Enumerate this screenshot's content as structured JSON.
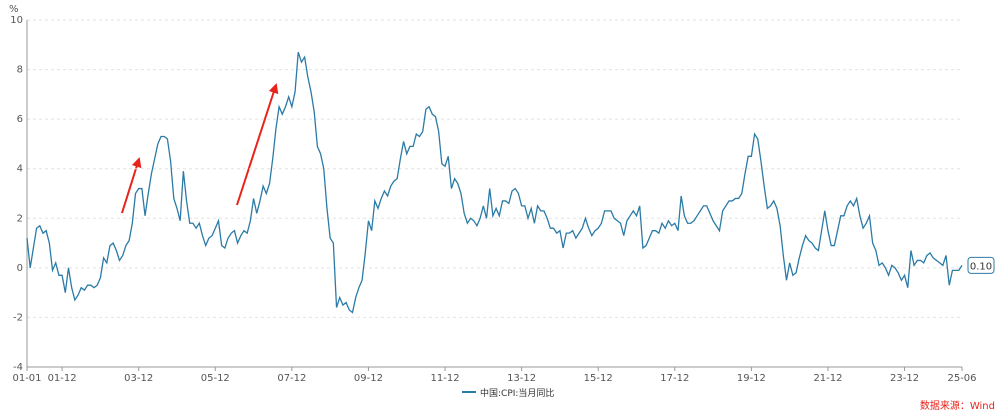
{
  "chart_data": {
    "type": "line",
    "y_unit": "%",
    "ylim": [
      -4,
      10
    ],
    "yticks": [
      -4,
      -2,
      0,
      2,
      4,
      6,
      8,
      10
    ],
    "grid": true,
    "legend": "bottom",
    "source": "数据来源：Wind",
    "end_label": "0.10",
    "categories": [
      "01-01",
      null,
      null,
      null,
      null,
      null,
      null,
      null,
      null,
      null,
      null,
      "01-12",
      null,
      null,
      null,
      null,
      null,
      null,
      null,
      null,
      null,
      null,
      null,
      null,
      null,
      null,
      null,
      null,
      null,
      null,
      null,
      null,
      null,
      null,
      null,
      "03-12",
      null,
      null,
      null,
      null,
      null,
      null,
      null,
      null,
      null,
      null,
      null,
      null,
      null,
      null,
      null,
      null,
      null,
      null,
      null,
      null,
      null,
      null,
      null,
      "05-12",
      null,
      null,
      null,
      null,
      null,
      null,
      null,
      null,
      null,
      null,
      null,
      null,
      null,
      null,
      null,
      null,
      null,
      null,
      null,
      null,
      null,
      null,
      null,
      "07-12",
      null,
      null,
      null,
      null,
      null,
      null,
      null,
      null,
      null,
      null,
      null,
      null,
      null,
      null,
      null,
      null,
      null,
      null,
      null,
      null,
      null,
      null,
      null,
      "09-12",
      null,
      null,
      null,
      null,
      null,
      null,
      null,
      null,
      null,
      null,
      null,
      null,
      null,
      null,
      null,
      null,
      null,
      null,
      null,
      null,
      null,
      null,
      null,
      "11-12",
      null,
      null,
      null,
      null,
      null,
      null,
      null,
      null,
      null,
      null,
      null,
      null,
      null,
      null,
      null,
      null,
      null,
      null,
      null,
      null,
      null,
      null,
      null,
      "13-12",
      null,
      null,
      null,
      null,
      null,
      null,
      null,
      null,
      null,
      null,
      null,
      null,
      null,
      null,
      null,
      null,
      null,
      null,
      null,
      null,
      null,
      null,
      null,
      "15-12",
      null,
      null,
      null,
      null,
      null,
      null,
      null,
      null,
      null,
      null,
      null,
      null,
      null,
      null,
      null,
      null,
      null,
      null,
      null,
      null,
      null,
      null,
      null,
      "17-12",
      null,
      null,
      null,
      null,
      null,
      null,
      null,
      null,
      null,
      null,
      null,
      null,
      null,
      null,
      null,
      null,
      null,
      null,
      null,
      null,
      null,
      null,
      null,
      "19-12",
      null,
      null,
      null,
      null,
      null,
      null,
      null,
      null,
      null,
      null,
      null,
      null,
      null,
      null,
      null,
      null,
      null,
      null,
      null,
      null,
      null,
      null,
      null,
      "21-12",
      null,
      null,
      null,
      null,
      null,
      null,
      null,
      null,
      null,
      null,
      null,
      null,
      null,
      null,
      null,
      null,
      null,
      null,
      null,
      null,
      null,
      null,
      null,
      "23-12",
      null,
      null,
      null,
      null,
      null,
      null,
      null,
      null,
      null,
      null,
      null,
      null,
      null,
      null,
      null,
      null,
      null,
      "25-06"
    ],
    "series": [
      {
        "name": "中国:CPI:当月同比",
        "color": "#2b7ba6",
        "values": [
          1.2,
          0.0,
          0.8,
          1.6,
          1.7,
          1.4,
          1.5,
          1.0,
          -0.1,
          0.2,
          -0.3,
          -0.3,
          -1.0,
          0.0,
          -0.8,
          -1.3,
          -1.1,
          -0.8,
          -0.9,
          -0.7,
          -0.7,
          -0.8,
          -0.7,
          -0.4,
          0.4,
          0.2,
          0.9,
          1.0,
          0.7,
          0.3,
          0.5,
          0.9,
          1.1,
          1.8,
          3.0,
          3.2,
          3.2,
          2.1,
          3.0,
          3.8,
          4.4,
          5.0,
          5.3,
          5.3,
          5.2,
          4.3,
          2.8,
          2.4,
          1.9,
          3.9,
          2.7,
          1.8,
          1.8,
          1.6,
          1.8,
          1.3,
          0.9,
          1.2,
          1.3,
          1.6,
          1.9,
          0.9,
          0.8,
          1.2,
          1.4,
          1.5,
          1.0,
          1.3,
          1.5,
          1.4,
          1.9,
          2.8,
          2.2,
          2.7,
          3.3,
          3.0,
          3.4,
          4.4,
          5.6,
          6.5,
          6.2,
          6.5,
          6.9,
          6.5,
          7.1,
          8.7,
          8.3,
          8.5,
          7.7,
          7.1,
          6.3,
          4.9,
          4.6,
          4.0,
          2.4,
          1.2,
          1.0,
          -1.6,
          -1.2,
          -1.5,
          -1.4,
          -1.7,
          -1.8,
          -1.2,
          -0.8,
          -0.5,
          0.6,
          1.9,
          1.5,
          2.7,
          2.4,
          2.8,
          3.1,
          2.9,
          3.3,
          3.5,
          3.6,
          4.4,
          5.1,
          4.6,
          4.9,
          4.9,
          5.4,
          5.3,
          5.5,
          6.4,
          6.5,
          6.2,
          6.1,
          5.5,
          4.2,
          4.1,
          4.5,
          3.2,
          3.6,
          3.4,
          3.0,
          2.2,
          1.8,
          2.0,
          1.9,
          1.7,
          2.0,
          2.5,
          2.0,
          3.2,
          2.1,
          2.4,
          2.1,
          2.7,
          2.7,
          2.6,
          3.1,
          3.2,
          3.0,
          2.5,
          2.5,
          2.0,
          2.4,
          1.8,
          2.5,
          2.3,
          2.3,
          2.0,
          1.6,
          1.6,
          1.4,
          1.5,
          0.8,
          1.4,
          1.4,
          1.5,
          1.2,
          1.4,
          1.6,
          2.0,
          1.6,
          1.3,
          1.5,
          1.6,
          1.8,
          2.3,
          2.3,
          2.3,
          2.0,
          1.9,
          1.8,
          1.3,
          1.9,
          2.1,
          2.3,
          2.1,
          2.5,
          0.8,
          0.9,
          1.2,
          1.5,
          1.5,
          1.4,
          1.8,
          1.6,
          1.9,
          1.7,
          1.8,
          1.5,
          2.9,
          2.1,
          1.8,
          1.8,
          1.9,
          2.1,
          2.3,
          2.5,
          2.5,
          2.2,
          1.9,
          1.7,
          1.5,
          2.3,
          2.5,
          2.7,
          2.7,
          2.8,
          2.8,
          3.0,
          3.8,
          4.5,
          4.5,
          5.4,
          5.2,
          4.3,
          3.3,
          2.4,
          2.5,
          2.7,
          2.4,
          1.7,
          0.5,
          -0.5,
          0.2,
          -0.3,
          -0.2,
          0.4,
          0.9,
          1.3,
          1.1,
          1.0,
          0.8,
          0.7,
          1.5,
          2.3,
          1.5,
          0.9,
          0.9,
          1.5,
          2.1,
          2.1,
          2.5,
          2.7,
          2.5,
          2.8,
          2.1,
          1.6,
          1.8,
          2.1,
          1.0,
          0.7,
          0.1,
          0.2,
          0.0,
          -0.3,
          0.1,
          0.0,
          -0.2,
          -0.5,
          -0.3,
          -0.8,
          0.7,
          0.1,
          0.3,
          0.3,
          0.2,
          0.5,
          0.6,
          0.4,
          0.3,
          0.2,
          0.1,
          0.5,
          -0.7,
          -0.1,
          -0.1,
          -0.1,
          0.1
        ]
      }
    ]
  }
}
